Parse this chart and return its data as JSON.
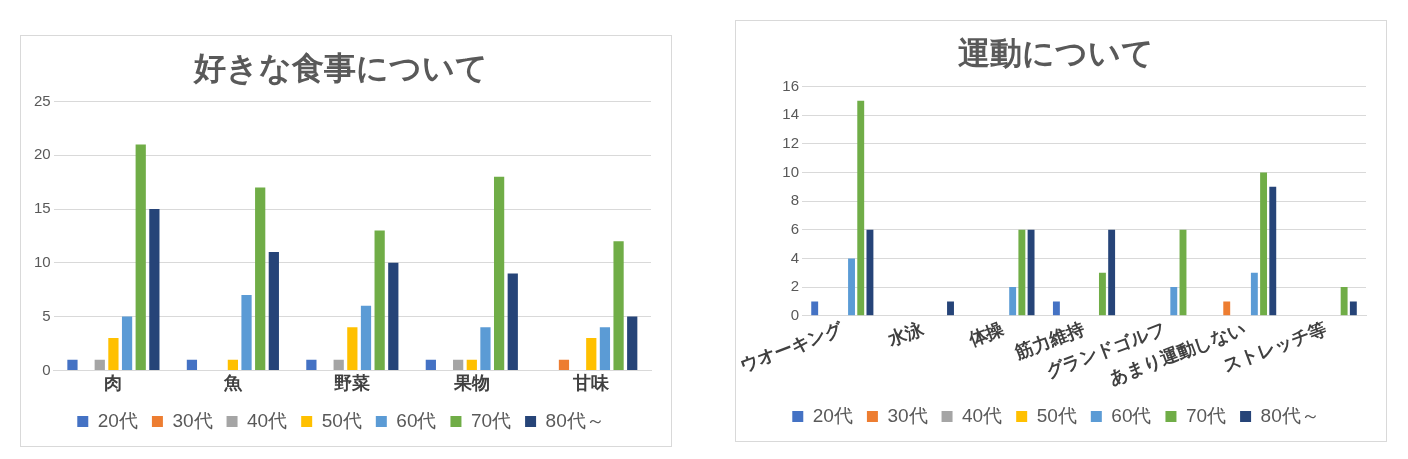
{
  "chart_data": [
    {
      "type": "bar",
      "title": "好きな食事について",
      "categories": [
        "肉",
        "魚",
        "野菜",
        "果物",
        "甘味"
      ],
      "series": [
        {
          "name": "20代",
          "color": "#4472c4",
          "values": [
            1,
            1,
            1,
            1,
            0
          ]
        },
        {
          "name": "30代",
          "color": "#ed7d31",
          "values": [
            0,
            0,
            0,
            0,
            1
          ]
        },
        {
          "name": "40代",
          "color": "#a5a5a5",
          "values": [
            1,
            0,
            1,
            1,
            0
          ]
        },
        {
          "name": "50代",
          "color": "#ffc000",
          "values": [
            3,
            1,
            4,
            1,
            3
          ]
        },
        {
          "name": "60代",
          "color": "#5b9bd5",
          "values": [
            5,
            7,
            6,
            4,
            4
          ]
        },
        {
          "name": "70代",
          "color": "#70ad47",
          "values": [
            21,
            17,
            13,
            18,
            12
          ]
        },
        {
          "name": "80代～",
          "color": "#264478",
          "values": [
            15,
            11,
            10,
            9,
            5
          ]
        }
      ],
      "ylim": [
        0,
        25
      ],
      "yticks": [
        0,
        5,
        10,
        15,
        20,
        25
      ],
      "grid": "y",
      "legend": "bottom"
    },
    {
      "type": "bar",
      "title": "運動について",
      "categories": [
        "ウオーキング",
        "水泳",
        "体操",
        "筋力維持",
        "グランドゴルフ",
        "あまり運動しない",
        "ストレッチ等"
      ],
      "series": [
        {
          "name": "20代",
          "color": "#4472c4",
          "values": [
            1,
            0,
            0,
            1,
            0,
            0,
            0
          ]
        },
        {
          "name": "30代",
          "color": "#ed7d31",
          "values": [
            0,
            0,
            0,
            0,
            0,
            1,
            0
          ]
        },
        {
          "name": "40代",
          "color": "#a5a5a5",
          "values": [
            0,
            0,
            0,
            0,
            0,
            0,
            0
          ]
        },
        {
          "name": "50代",
          "color": "#ffc000",
          "values": [
            0,
            0,
            0,
            0,
            0,
            0,
            0
          ]
        },
        {
          "name": "60代",
          "color": "#5b9bd5",
          "values": [
            4,
            0,
            2,
            0,
            2,
            3,
            0
          ]
        },
        {
          "name": "70代",
          "color": "#70ad47",
          "values": [
            15,
            0,
            6,
            3,
            6,
            10,
            2
          ]
        },
        {
          "name": "80代～",
          "color": "#264478",
          "values": [
            6,
            1,
            6,
            6,
            0,
            9,
            1
          ]
        }
      ],
      "ylim": [
        0,
        16
      ],
      "yticks": [
        0,
        2,
        4,
        6,
        8,
        10,
        12,
        14,
        16
      ],
      "grid": "y",
      "legend": "bottom"
    }
  ]
}
